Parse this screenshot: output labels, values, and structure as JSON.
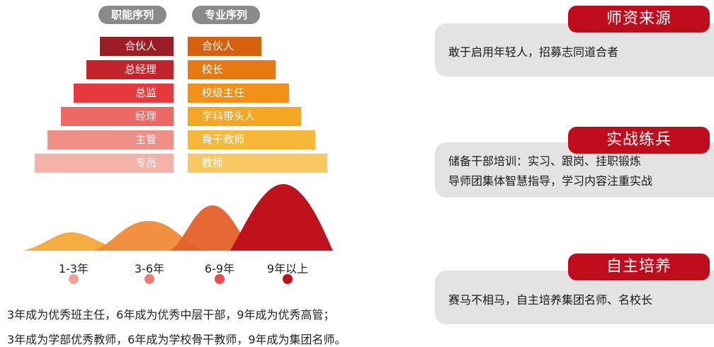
{
  "headers": {
    "functional": "职能序列",
    "professional": "专业序列"
  },
  "functional_levels": [
    "合伙人",
    "总经理",
    "总监",
    "经理",
    "主管",
    "专员"
  ],
  "professional_levels": [
    "合伙人",
    "校长",
    "校级主任",
    "学科带头人",
    "骨干教师",
    "教师"
  ],
  "functional_colors": [
    "#9c1d24",
    "#c3232a",
    "#e6393d",
    "#ec6966",
    "#f08f87",
    "#f3b3ab"
  ],
  "professional_colors": [
    "#d7600e",
    "#e6790f",
    "#f28f16",
    "#f5a623",
    "#f7b839",
    "#f8c962"
  ],
  "timeline": {
    "years": [
      "1-3年",
      "3-6年",
      "6-9年",
      "9年以上"
    ],
    "dot_colors": [
      "#f2a29a",
      "#ee7d73",
      "#e84b4b",
      "#c0121c"
    ],
    "wave_colors": [
      "#f4a838",
      "#ef8a36",
      "#e5602a",
      "#c0121c"
    ]
  },
  "summary": [
    "3年成为优秀班主任，6年成为优秀中层干部，9年成为优秀高管；",
    "3年成为学部优秀教师，6年成为学校骨干教师，9年成为集团名师。"
  ],
  "cards": [
    {
      "title": "师资来源",
      "lines": [
        "敢于启用年轻人，招募志同道合者"
      ]
    },
    {
      "title": "实战练兵",
      "lines": [
        "储备干部培训：实习、跟岗、挂职锻炼",
        "导师团集体智慧指导，学习内容注重实战"
      ]
    },
    {
      "title": "自主培养",
      "lines": [
        "赛马不相马，自主培养集团名师、名校长"
      ]
    }
  ]
}
